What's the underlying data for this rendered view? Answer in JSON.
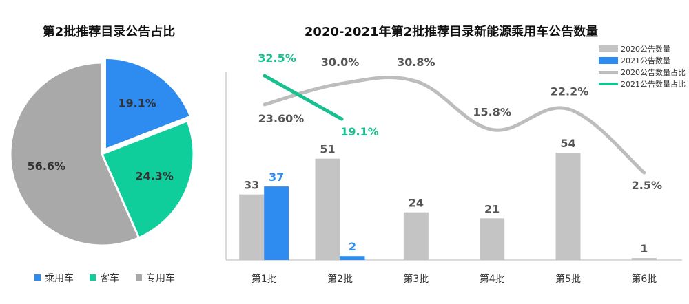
{
  "chart_data": [
    {
      "type": "pie",
      "title": "第2批推荐目录公告占比",
      "slices": [
        {
          "name": "乘用车",
          "value": 19.1,
          "label": "19.1%",
          "color": "#2E8BF0",
          "exploded": true
        },
        {
          "name": "客车",
          "value": 24.3,
          "label": "24.3%",
          "color": "#0FCE9C",
          "exploded": false
        },
        {
          "name": "专用车",
          "value": 56.6,
          "label": "56.6%",
          "color": "#A9A9A9",
          "exploded": false
        }
      ],
      "legend": {
        "position": "bottom",
        "items": [
          "乘用车",
          "客车",
          "专用车"
        ]
      }
    },
    {
      "type": "bar",
      "title": "2020-2021年第2批推荐目录新能源乘用车公告数量",
      "categories": [
        "第1批",
        "第2批",
        "第3批",
        "第4批",
        "第5批",
        "第6批"
      ],
      "series": [
        {
          "name": "2020公告数量",
          "kind": "bar",
          "color": "#C4C4C4",
          "values": [
            33,
            51,
            24,
            21,
            54,
            1
          ],
          "labels": [
            "33",
            "51",
            "24",
            "21",
            "54",
            "1"
          ]
        },
        {
          "name": "2021公告数量",
          "kind": "bar",
          "color": "#2E8BF0",
          "values": [
            37,
            2,
            null,
            null,
            null,
            null
          ],
          "labels": [
            "37",
            "2",
            "",
            "",
            "",
            ""
          ]
        },
        {
          "name": "2020公告数量占比",
          "kind": "line",
          "color": "#BDBDBD",
          "values": [
            23.6,
            30.0,
            30.8,
            15.8,
            22.2,
            2.5
          ],
          "labels": [
            "23.60%",
            "30.0%",
            "30.8%",
            "15.8%",
            "22.2%",
            "2.5%"
          ]
        },
        {
          "name": "2021公告数量占比",
          "kind": "line",
          "color": "#17C08E",
          "values": [
            32.5,
            19.1,
            null,
            null,
            null,
            null
          ],
          "labels": [
            "32.5%",
            "19.1%",
            "",
            "",
            "",
            ""
          ]
        }
      ],
      "bar_ylim": [
        0,
        90
      ],
      "line_ylim": [
        -25,
        40
      ],
      "legend": {
        "position": "top-right"
      },
      "grid": false
    }
  ]
}
